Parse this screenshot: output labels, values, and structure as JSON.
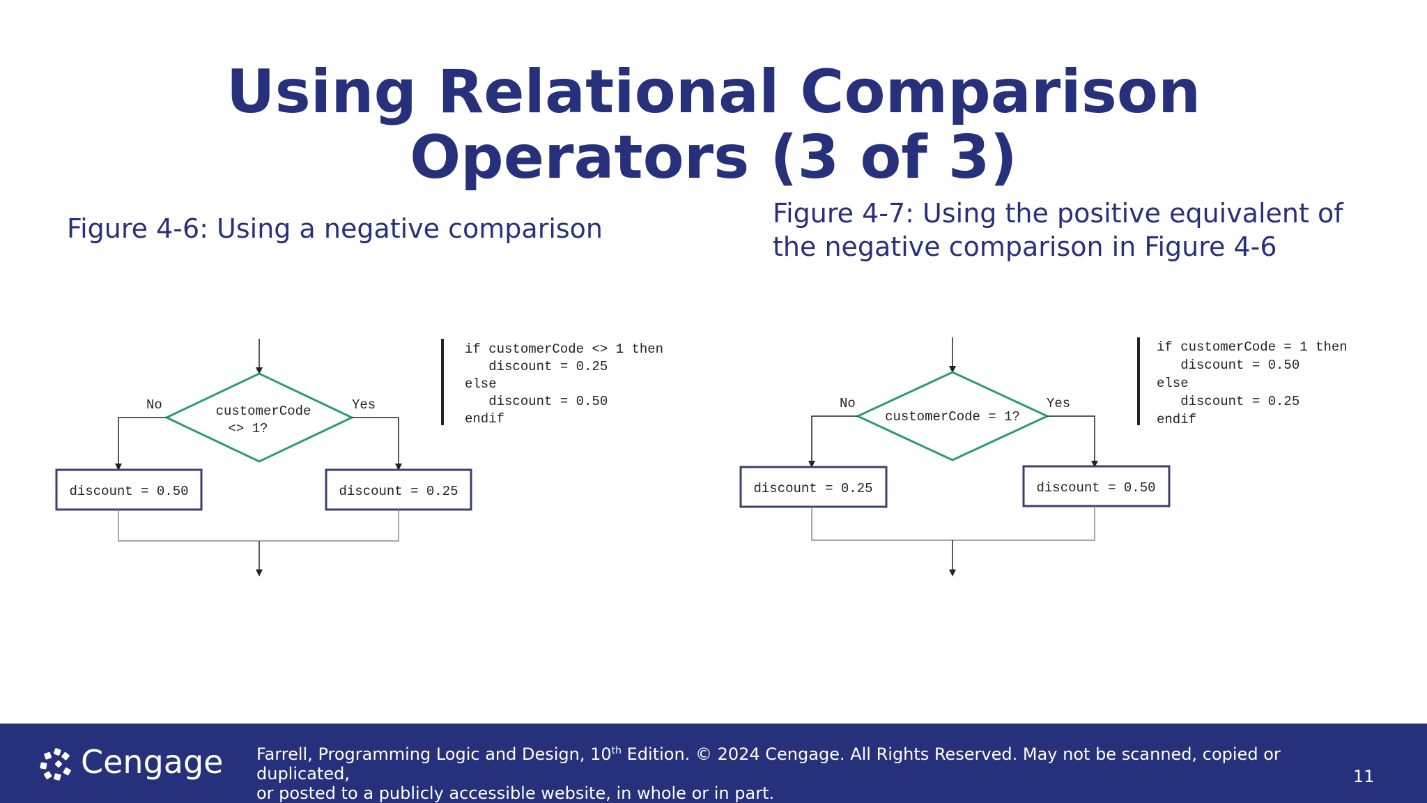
{
  "slide": {
    "title": "Using Relational Comparison Operators (3 of 3)",
    "captions": {
      "left": "Figure 4-6: Using a negative comparison",
      "right": "Figure 4-7: Using the positive equivalent of the negative comparison in Figure 4-6"
    }
  },
  "figure_left": {
    "decision_line1": "customerCode",
    "decision_line2": "<> 1?",
    "no_label": "No",
    "yes_label": "Yes",
    "no_box": "discount = 0.50",
    "yes_box": "discount = 0.25",
    "code": [
      "if customerCode <> 1 then",
      "   discount = 0.25",
      "else",
      "   discount = 0.50",
      "endif"
    ]
  },
  "figure_right": {
    "decision": "customerCode = 1?",
    "no_label": "No",
    "yes_label": "Yes",
    "no_box": "discount = 0.25",
    "yes_box": "discount = 0.50",
    "code": [
      "if customerCode = 1 then",
      "   discount = 0.50",
      "else",
      "   discount = 0.25",
      "endif"
    ]
  },
  "footer": {
    "brand": "Cengage",
    "copyright_part1": "Farrell, Programming Logic and Design, 10",
    "copyright_sup": "th",
    "copyright_part2": " Edition. © 2024 Cengage. All Rights Reserved. May not be scanned, copied or duplicated,",
    "copyright_line2": "or posted to a publicly accessible website, in whole or in part.",
    "page_number": "11"
  },
  "colors": {
    "title": "#27307a",
    "footer_bg": "#27307a",
    "diamond": "#2a9a74",
    "box_border": "#3a3f6e"
  }
}
